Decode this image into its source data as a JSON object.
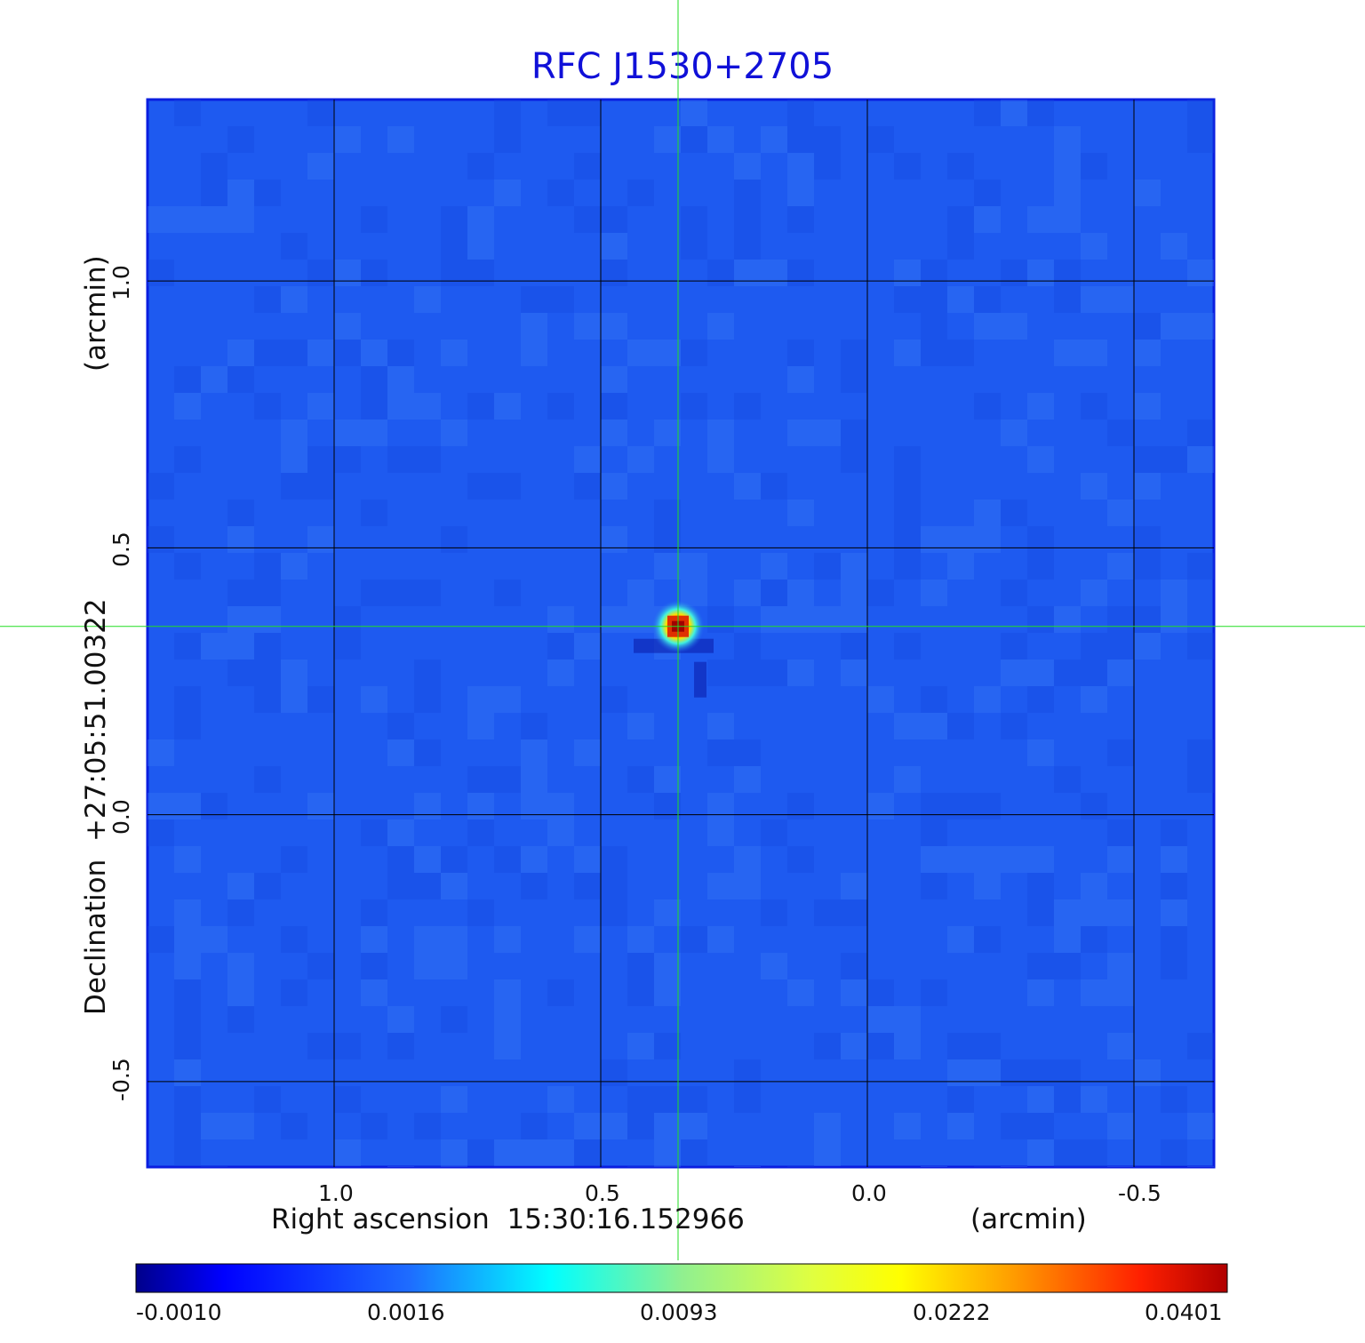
{
  "chart_data": {
    "type": "heatmap",
    "title": "RFC J1530+2705",
    "xlabel": {
      "text": "Right ascension  15:30:16.152966",
      "unit": "(arcmin)"
    },
    "ylabel": {
      "text": "Declination  +27:05:51.00322",
      "unit": "(arcmin)"
    },
    "x_ticks": [
      "1.0",
      "0.5",
      "0.0",
      "-0.5"
    ],
    "x_tick_values": [
      1.0,
      0.5,
      0.0,
      -0.5
    ],
    "y_ticks": [
      "1.0",
      "0.5",
      "0.0",
      "-0.5"
    ],
    "y_tick_values": [
      1.0,
      0.5,
      0.0,
      -0.5
    ],
    "xlim": [
      1.35,
      -0.65
    ],
    "ylim": [
      -0.66,
      1.34
    ],
    "grid": true,
    "crosshair": {
      "x": 0.355,
      "y": 0.353
    },
    "source_peak": {
      "x": 0.355,
      "y": 0.353,
      "value": 0.0401
    },
    "colormap": "jet",
    "colorbar_ticks": [
      "-0.0010",
      "0.0016",
      "0.0093",
      "0.0222",
      "0.0401"
    ],
    "colorbar_values": [
      -0.001,
      0.0016,
      0.0093,
      0.0222,
      0.0401
    ],
    "colors": {
      "title": "#1010d8",
      "background_field": "#1e5af0",
      "grid": "#000000",
      "crosshair": "#22dd22",
      "frame": "#0a1ee0"
    }
  }
}
